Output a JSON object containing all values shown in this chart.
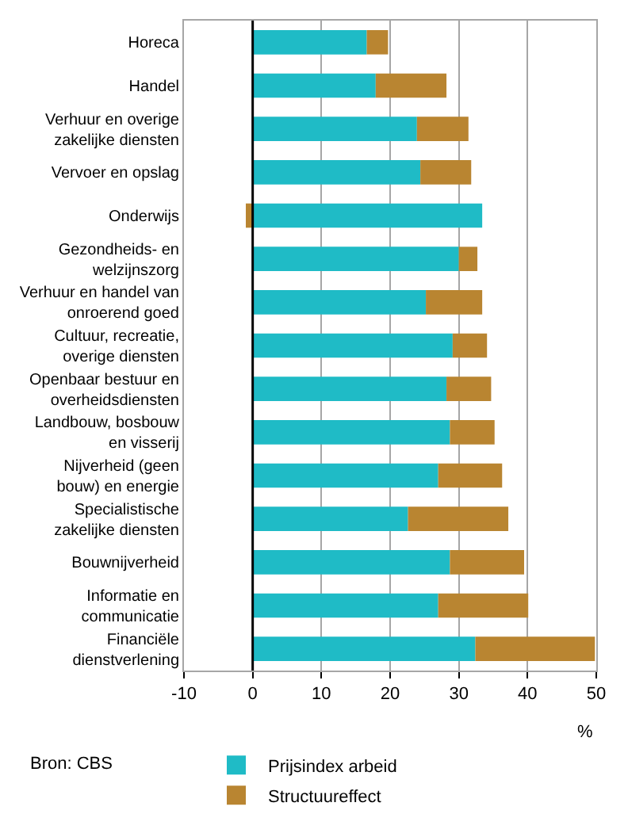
{
  "chart_data": {
    "type": "bar",
    "orientation": "horizontal",
    "stacked": true,
    "categories": [
      "Horeca",
      "Handel",
      "Verhuur en overige\nzakelijke diensten",
      "Vervoer en opslag",
      "Onderwijs",
      "Gezondheids- en\nwelzijnszorg",
      "Verhuur en handel van\nonroerend goed",
      "Cultuur, recreatie,\noverige diensten",
      "Openbaar bestuur en\noverheidsdiensten",
      "Landbouw, bosbouw\nen visserij",
      "Nijverheid (geen\nbouw) en energie",
      "Specialistische\nzakelijke diensten",
      "Bouwnijverheid",
      "Informatie en\ncommunicatie",
      "Financiële\ndienstverlening"
    ],
    "series": [
      {
        "name": "Prijsindex arbeid",
        "color": "#1fbbc6",
        "values": [
          16.6,
          17.9,
          23.9,
          24.4,
          33.4,
          30.0,
          25.2,
          29.1,
          28.2,
          28.7,
          27.0,
          22.6,
          28.7,
          27.0,
          32.4
        ]
      },
      {
        "name": "Structuureffect",
        "color": "#b98531",
        "values": [
          3.1,
          10.3,
          7.5,
          7.4,
          -1.0,
          2.7,
          8.2,
          5.0,
          6.5,
          6.5,
          9.3,
          14.6,
          10.8,
          13.1,
          17.4
        ]
      }
    ],
    "xlim": [
      -10,
      50
    ],
    "xticks": [
      -10,
      0,
      10,
      20,
      30,
      40,
      50
    ],
    "xlabel": "%",
    "grid": "x",
    "legend": "bottom",
    "ref_lines": [
      {
        "axis": "x",
        "value": 0,
        "color": "#000000"
      }
    ],
    "annotations": [
      "Bron: CBS"
    ]
  }
}
